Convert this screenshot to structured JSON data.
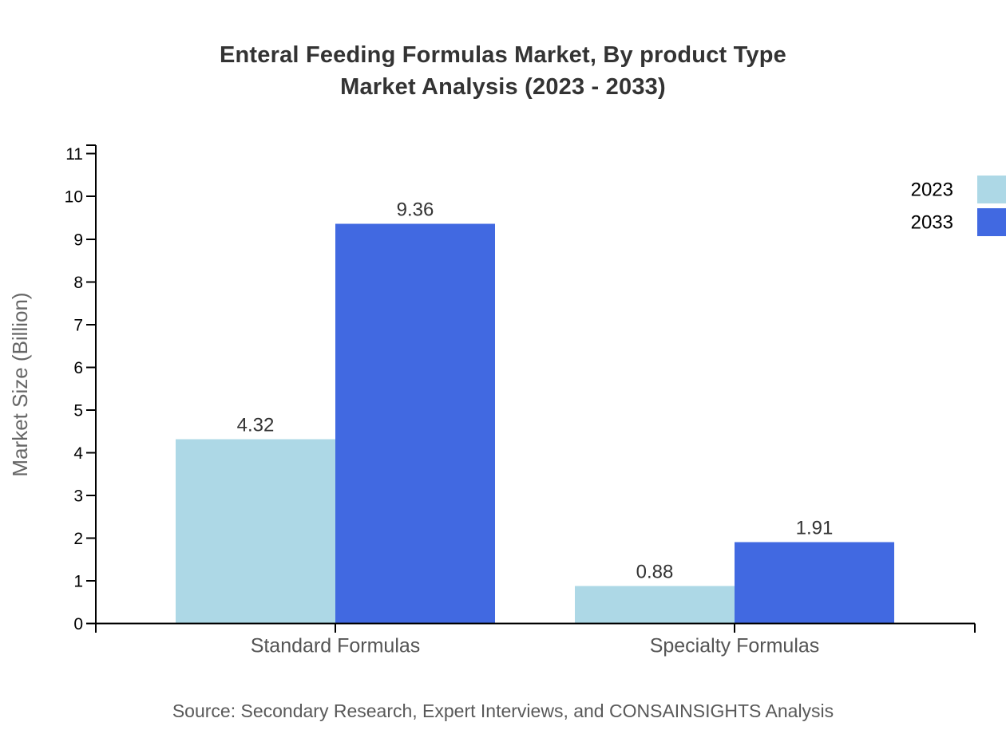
{
  "figure": {
    "background": "#ffffff"
  },
  "source_note": "Source: Secondary Research, Expert Interviews, and CONSAINSIGHTS Analysis",
  "chart_data": {
    "type": "bar",
    "title": "Enteral Feeding Formulas Market, By product Type Market Analysis (2023 - 2033)",
    "title_lines": [
      "Enteral Feeding Formulas Market, By product Type",
      "Market Analysis (2023 - 2033)"
    ],
    "categories": [
      "Standard Formulas",
      "Specialty Formulas"
    ],
    "series": [
      {
        "name": "2023",
        "color": "#ADD8E6",
        "values": [
          4.32,
          0.88
        ],
        "value_labels": [
          "4.32",
          "0.88"
        ]
      },
      {
        "name": "2033",
        "color": "#4169E1",
        "values": [
          9.36,
          1.91
        ],
        "value_labels": [
          "9.36",
          "1.91"
        ]
      }
    ],
    "xlabel": "",
    "ylabel": "Market Size (Billion)",
    "ylim": [
      0,
      11.2
    ],
    "yticks": [
      0,
      1,
      2,
      3,
      4,
      5,
      6,
      7,
      8,
      9,
      10,
      11
    ],
    "grid": false,
    "legend": {
      "position": "right-top-outside",
      "entries": [
        "2023",
        "2033"
      ]
    }
  },
  "colors": {
    "title_text": "#333333",
    "axis_line": "#000000",
    "tick_label": "#000000",
    "category_label": "#555555",
    "axis_title": "#666666",
    "value_label": "#333333",
    "source_text": "#595959",
    "legend_label": "#000000"
  }
}
